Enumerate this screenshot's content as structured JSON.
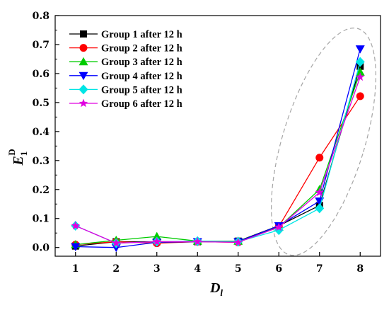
{
  "chart_data": {
    "type": "line",
    "title": "",
    "xlabel": {
      "main": "D",
      "sub": "l"
    },
    "ylabel": {
      "main": "E",
      "sub": "1",
      "sup": "D"
    },
    "x": [
      1,
      2,
      3,
      4,
      5,
      6,
      7,
      8
    ],
    "xlim": [
      0.5,
      8.5
    ],
    "ylim": [
      -0.03,
      0.8
    ],
    "xticks": [
      "1",
      "2",
      "3",
      "4",
      "5",
      "6",
      "7",
      "8"
    ],
    "yticks": [
      "0.0",
      "0.1",
      "0.2",
      "0.3",
      "0.4",
      "0.5",
      "0.6",
      "0.7",
      "0.8"
    ],
    "grid": false,
    "legend_position": "top-left",
    "series": [
      {
        "name": "Group 1 after 12 h",
        "color": "#000000",
        "marker": "square",
        "values": [
          0.005,
          0.02,
          0.02,
          0.02,
          0.022,
          0.075,
          0.145,
          0.625
        ]
      },
      {
        "name": "Group 2 after 12 h",
        "color": "#ff0000",
        "marker": "circle",
        "values": [
          0.01,
          0.02,
          0.015,
          0.02,
          0.018,
          0.072,
          0.31,
          0.522
        ]
      },
      {
        "name": "Group 3 after 12 h",
        "color": "#00cc00",
        "marker": "triangle-up",
        "values": [
          0.01,
          0.025,
          0.038,
          0.022,
          0.022,
          0.07,
          0.2,
          0.605
        ]
      },
      {
        "name": "Group 4 after 12 h",
        "color": "#0000ff",
        "marker": "triangle-down",
        "values": [
          0.003,
          0.0,
          0.018,
          0.02,
          0.02,
          0.075,
          0.16,
          0.685
        ]
      },
      {
        "name": "Group 5 after 12 h",
        "color": "#00e5e5",
        "marker": "diamond",
        "values": [
          0.075,
          0.015,
          0.02,
          0.022,
          0.02,
          0.06,
          0.135,
          0.64
        ]
      },
      {
        "name": "Group 6 after 12 h",
        "color": "#e000e0",
        "marker": "star",
        "values": [
          0.075,
          0.015,
          0.02,
          0.02,
          0.018,
          0.07,
          0.19,
          0.588
        ]
      }
    ]
  }
}
